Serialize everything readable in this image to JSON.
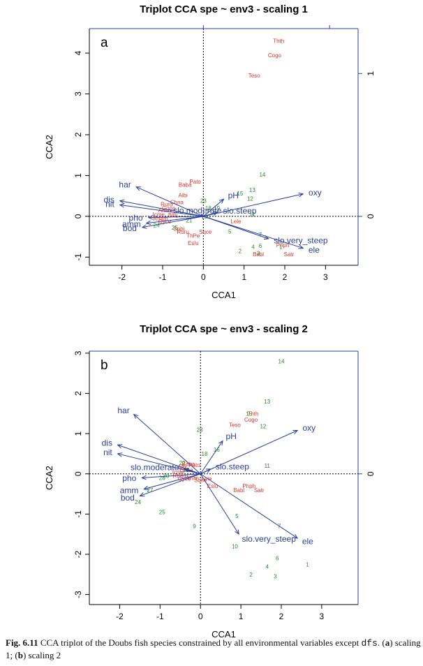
{
  "chart_data": [
    {
      "type": "scatter",
      "panel_label": "a",
      "title": "Triplot CCA spe ~ env3 - scaling 1",
      "xlabel": "CCA1",
      "ylabel": "CCA2",
      "xlim": [
        -2.8,
        3.8
      ],
      "ylim": [
        -1.2,
        4.6
      ],
      "xticks": [
        -2,
        -1,
        0,
        1,
        2,
        3
      ],
      "yticks": [
        -1,
        0,
        1,
        2,
        3,
        4
      ],
      "right_axis": {
        "ticks": [
          0,
          1
        ],
        "ratio": 3.5
      },
      "top_axis_ticks": [
        0.0,
        3.1
      ],
      "grid": false,
      "reference_lines": "dotted lines at x = 0 and y = 0",
      "colors": {
        "species": "#e0342b",
        "sites": "#1f8a1f",
        "environment": "#2b3f9e",
        "axes": "#000000",
        "right_top_axis": "#2b3f9e"
      },
      "species": [
        {
          "label": "Thth",
          "x": 1.85,
          "y": 4.3
        },
        {
          "label": "Cogo",
          "x": 1.75,
          "y": 3.95
        },
        {
          "label": "Teso",
          "x": 1.25,
          "y": 3.45
        },
        {
          "label": "Pato",
          "x": -0.2,
          "y": 0.85
        },
        {
          "label": "Baba",
          "x": -0.45,
          "y": 0.78
        },
        {
          "label": "Albi",
          "x": -0.5,
          "y": 0.52
        },
        {
          "label": "Chna",
          "x": -0.65,
          "y": 0.35
        },
        {
          "label": "Ruru",
          "x": -0.9,
          "y": 0.3
        },
        {
          "label": "Gogo",
          "x": -0.85,
          "y": 0.2
        },
        {
          "label": "Anan",
          "x": -0.95,
          "y": 0.15
        },
        {
          "label": "Icme",
          "x": -1.1,
          "y": 0.05
        },
        {
          "label": "Blbj",
          "x": -0.75,
          "y": 0.03
        },
        {
          "label": "Rham",
          "x": -1.05,
          "y": -0.05
        },
        {
          "label": "Gyce",
          "x": -0.95,
          "y": -0.12
        },
        {
          "label": "Lele",
          "x": 0.8,
          "y": -0.12
        },
        {
          "label": "Spbi",
          "x": -0.6,
          "y": -0.3
        },
        {
          "label": "Ruru",
          "x": -0.5,
          "y": -0.38
        },
        {
          "label": "Sqce",
          "x": 0.05,
          "y": -0.38
        },
        {
          "label": "ThPe",
          "x": -0.25,
          "y": -0.47
        },
        {
          "label": "Eslu",
          "x": -0.25,
          "y": -0.65
        },
        {
          "label": "Phph",
          "x": 1.95,
          "y": -0.7
        },
        {
          "label": "Babl",
          "x": 1.35,
          "y": -0.93
        },
        {
          "label": "Satr",
          "x": 2.1,
          "y": -0.93
        }
      ],
      "sites": [
        {
          "label": "14",
          "x": 1.45,
          "y": 1.02
        },
        {
          "label": "13",
          "x": 1.2,
          "y": 0.65
        },
        {
          "label": "15",
          "x": 0.9,
          "y": 0.56
        },
        {
          "label": "12",
          "x": 1.15,
          "y": 0.43
        },
        {
          "label": "23",
          "x": 0.0,
          "y": 0.38
        },
        {
          "label": "18",
          "x": 0.12,
          "y": 0.2
        },
        {
          "label": "19",
          "x": 0.33,
          "y": 0.2
        },
        {
          "label": "11",
          "x": 1.2,
          "y": 0.05
        },
        {
          "label": "20",
          "x": 0.1,
          "y": 0.0
        },
        {
          "label": "24",
          "x": -1.15,
          "y": -0.22
        },
        {
          "label": "25",
          "x": -0.7,
          "y": -0.28
        },
        {
          "label": "21",
          "x": -0.35,
          "y": -0.1
        },
        {
          "label": "5",
          "x": 0.65,
          "y": -0.37
        },
        {
          "label": "7",
          "x": 1.4,
          "y": -0.45
        },
        {
          "label": "6",
          "x": 1.4,
          "y": -0.72
        },
        {
          "label": "4",
          "x": 1.22,
          "y": -0.75
        },
        {
          "label": "1",
          "x": 1.9,
          "y": -0.75
        },
        {
          "label": "2",
          "x": 0.9,
          "y": -0.85
        },
        {
          "label": "3",
          "x": 1.35,
          "y": -0.9
        }
      ],
      "environment": [
        {
          "label": "oxy",
          "x": 2.45,
          "y": 0.55
        },
        {
          "label": "ele",
          "x": 2.45,
          "y": -0.78
        },
        {
          "label": "har",
          "x": -1.65,
          "y": 0.72
        },
        {
          "label": "dis",
          "x": -2.05,
          "y": 0.38
        },
        {
          "label": "nit",
          "x": -2.05,
          "y": 0.28
        },
        {
          "label": "pho",
          "x": -1.35,
          "y": -0.03
        },
        {
          "label": "amm",
          "x": -1.4,
          "y": -0.17
        },
        {
          "label": "bod",
          "x": -1.5,
          "y": -0.27
        },
        {
          "label": "pH",
          "x": 0.5,
          "y": 0.42
        },
        {
          "label": "slo.very_steep",
          "x": 1.6,
          "y": -0.55
        },
        {
          "label": "slo.steep",
          "x": 0.35,
          "y": 0.1
        },
        {
          "label": "slo.moderate",
          "x": -0.05,
          "y": 0.05
        }
      ]
    },
    {
      "type": "scatter",
      "panel_label": "b",
      "title": "Triplot CCA spe ~ env3 - scaling 2",
      "xlabel": "CCA1",
      "ylabel": "CCA2",
      "xlim": [
        -2.75,
        3.9
      ],
      "ylim": [
        -3.25,
        3.05
      ],
      "xticks": [
        -2,
        -1,
        0,
        1,
        2,
        3
      ],
      "yticks": [
        -3,
        -2,
        -1,
        0,
        1,
        2,
        3
      ],
      "right_axis": {
        "ticks": [
          0
        ],
        "ratio": 1.0
      },
      "grid": false,
      "reference_lines": "dotted lines at x = 0 and y = 0",
      "colors": {
        "species": "#e0342b",
        "sites": "#1f8a1f",
        "environment": "#2b3f9e",
        "axes": "#000000",
        "right_top_axis": "#2b3f9e"
      },
      "species": [
        {
          "label": "Thth",
          "x": 1.3,
          "y": 1.5
        },
        {
          "label": "Cogo",
          "x": 1.25,
          "y": 1.35
        },
        {
          "label": "Teso",
          "x": 0.85,
          "y": 1.22
        },
        {
          "label": "Phph",
          "x": 1.2,
          "y": -0.3
        },
        {
          "label": "Babl",
          "x": 0.95,
          "y": -0.4
        },
        {
          "label": "Satr",
          "x": 1.45,
          "y": -0.4
        },
        {
          "label": "Baba",
          "x": -0.3,
          "y": 0.25
        },
        {
          "label": "Albi",
          "x": -0.45,
          "y": 0.18
        },
        {
          "label": "Pato",
          "x": -0.15,
          "y": 0.22
        },
        {
          "label": "Chna",
          "x": -0.35,
          "y": 0.1
        },
        {
          "label": "Icme",
          "x": -0.55,
          "y": 0.05
        },
        {
          "label": "Rham",
          "x": -0.5,
          "y": -0.05
        },
        {
          "label": "Gyce",
          "x": -0.4,
          "y": -0.12
        },
        {
          "label": "Anan",
          "x": -0.2,
          "y": -0.1
        },
        {
          "label": "Lele",
          "x": 0.15,
          "y": -0.12
        },
        {
          "label": "Sqce",
          "x": 0.0,
          "y": -0.15
        },
        {
          "label": "Eslu",
          "x": 0.3,
          "y": -0.3
        }
      ],
      "sites": [
        {
          "label": "14",
          "x": 2.0,
          "y": 2.8
        },
        {
          "label": "13",
          "x": 1.65,
          "y": 1.8
        },
        {
          "label": "15",
          "x": 1.2,
          "y": 1.5
        },
        {
          "label": "12",
          "x": 1.55,
          "y": 1.18
        },
        {
          "label": "23",
          "x": -0.02,
          "y": 1.1
        },
        {
          "label": "16",
          "x": 0.4,
          "y": 0.6
        },
        {
          "label": "18",
          "x": 0.1,
          "y": 0.5
        },
        {
          "label": "11",
          "x": 1.65,
          "y": 0.2
        },
        {
          "label": "22",
          "x": -0.45,
          "y": 0.27
        },
        {
          "label": "21",
          "x": -0.35,
          "y": 0.1
        },
        {
          "label": "26",
          "x": -0.95,
          "y": -0.1
        },
        {
          "label": "30",
          "x": -0.85,
          "y": -0.05
        },
        {
          "label": "27",
          "x": -1.25,
          "y": -0.4
        },
        {
          "label": "24",
          "x": -1.55,
          "y": -0.7
        },
        {
          "label": "25",
          "x": -0.95,
          "y": -0.95
        },
        {
          "label": "9",
          "x": -0.15,
          "y": -1.3
        },
        {
          "label": "5",
          "x": 0.9,
          "y": -1.05
        },
        {
          "label": "7",
          "x": 1.95,
          "y": -1.3
        },
        {
          "label": "10",
          "x": 0.85,
          "y": -1.8
        },
        {
          "label": "6",
          "x": 1.9,
          "y": -2.1
        },
        {
          "label": "4",
          "x": 1.65,
          "y": -2.3
        },
        {
          "label": "1",
          "x": 2.65,
          "y": -2.25
        },
        {
          "label": "2",
          "x": 1.25,
          "y": -2.5
        },
        {
          "label": "3",
          "x": 1.85,
          "y": -2.55
        }
      ],
      "environment": [
        {
          "label": "oxy",
          "x": 2.4,
          "y": 1.08
        },
        {
          "label": "ele",
          "x": 2.4,
          "y": -1.6
        },
        {
          "label": "har",
          "x": -1.65,
          "y": 1.48
        },
        {
          "label": "dis",
          "x": -2.05,
          "y": 0.72
        },
        {
          "label": "nit",
          "x": -2.05,
          "y": 0.5
        },
        {
          "label": "pho",
          "x": -1.45,
          "y": -0.1
        },
        {
          "label": "amm",
          "x": -1.4,
          "y": -0.38
        },
        {
          "label": "bod",
          "x": -1.5,
          "y": -0.55
        },
        {
          "label": "pH",
          "x": 0.55,
          "y": 0.82
        },
        {
          "label": "slo.very_steep",
          "x": 0.95,
          "y": -1.5
        },
        {
          "label": "slo.steep",
          "x": 0.25,
          "y": 0.12
        },
        {
          "label": "slo.moderate",
          "x": -0.4,
          "y": 0.12
        }
      ]
    }
  ],
  "caption": {
    "lead": "Fig. 6.11",
    "text_1": "  CCA triplot of the Doubs fish species constrained by all environmental variables except ",
    "code": "dfs",
    "text_2": ". (",
    "part_a": "a",
    "text_3": ") scaling 1; (",
    "part_b": "b",
    "text_4": ") scaling 2"
  }
}
